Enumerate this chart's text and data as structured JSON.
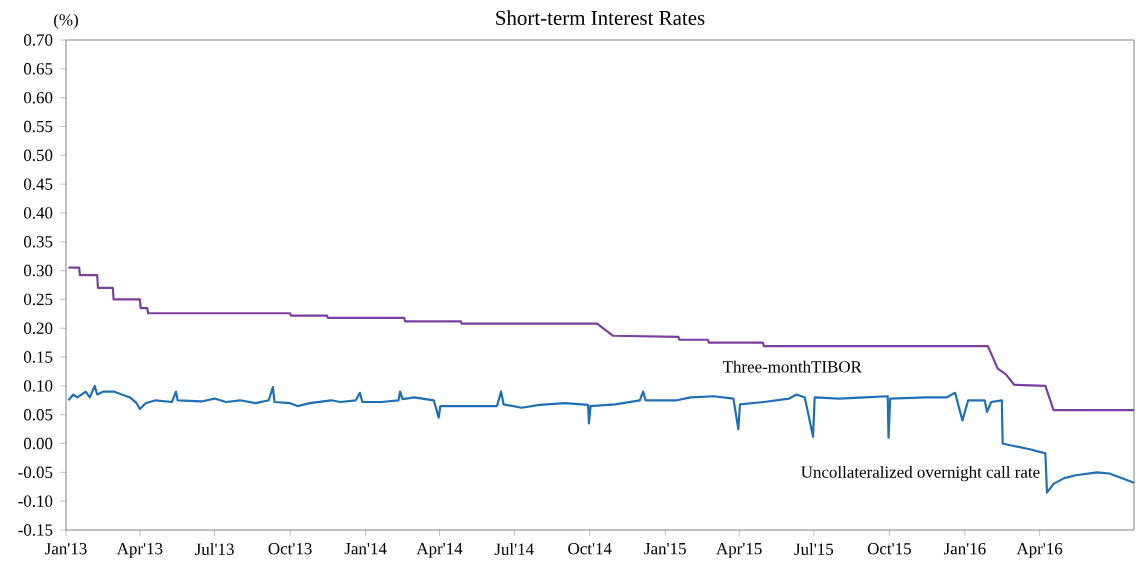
{
  "chart_data": {
    "type": "line",
    "title": "Short-term Interest Rates",
    "ylabel": "(%)",
    "xlim": [
      "2013-01-01",
      "2016-07-25"
    ],
    "xticks": [
      {
        "value": "2013-01-01",
        "label": "Jan'13"
      },
      {
        "value": "2013-04-01",
        "label": "Apr'13"
      },
      {
        "value": "2013-07-01",
        "label": "Jul'13"
      },
      {
        "value": "2013-10-01",
        "label": "Oct'13"
      },
      {
        "value": "2014-01-01",
        "label": "Jan'14"
      },
      {
        "value": "2014-04-01",
        "label": "Apr'14"
      },
      {
        "value": "2014-07-01",
        "label": "Jul'14"
      },
      {
        "value": "2014-10-01",
        "label": "Oct'14"
      },
      {
        "value": "2015-01-01",
        "label": "Jan'15"
      },
      {
        "value": "2015-04-01",
        "label": "Apr'15"
      },
      {
        "value": "2015-07-01",
        "label": "Jul'15"
      },
      {
        "value": "2015-10-01",
        "label": "Oct'15"
      },
      {
        "value": "2016-01-01",
        "label": "Jan'16"
      },
      {
        "value": "2016-04-01",
        "label": "Apr'16"
      }
    ],
    "ylim": [
      -0.15,
      0.7
    ],
    "yticks": [
      {
        "value": -0.15,
        "label": "-0.15"
      },
      {
        "value": -0.1,
        "label": "-0.10"
      },
      {
        "value": -0.05,
        "label": "-0.05"
      },
      {
        "value": 0,
        "label": "0.00"
      },
      {
        "value": 0.05,
        "label": "0.05"
      },
      {
        "value": 0.1,
        "label": "0.10"
      },
      {
        "value": 0.15,
        "label": "0.15"
      },
      {
        "value": 0.2,
        "label": "0.20"
      },
      {
        "value": 0.25,
        "label": "0.25"
      },
      {
        "value": 0.3,
        "label": "0.30"
      },
      {
        "value": 0.35,
        "label": "0.35"
      },
      {
        "value": 0.4,
        "label": "0.40"
      },
      {
        "value": 0.45,
        "label": "0.45"
      },
      {
        "value": 0.5,
        "label": "0.50"
      },
      {
        "value": 0.55,
        "label": "0.55"
      },
      {
        "value": 0.6,
        "label": "0.60"
      },
      {
        "value": 0.65,
        "label": "0.65"
      },
      {
        "value": 0.7,
        "label": "0.70"
      }
    ],
    "series": [
      {
        "name": "Three-monthTIBOR",
        "color": "#7b3f9e",
        "x": [
          "2013-01-04",
          "2013-01-17",
          "2013-01-18",
          "2013-02-08",
          "2013-02-09",
          "2013-02-27",
          "2013-02-28",
          "2013-04-01",
          "2013-04-02",
          "2013-04-10",
          "2013-04-11",
          "2013-10-01",
          "2013-10-02",
          "2013-11-15",
          "2013-11-16",
          "2014-02-17",
          "2014-02-18",
          "2014-04-27",
          "2014-04-28",
          "2014-10-10",
          "2014-10-29",
          "2015-01-17",
          "2015-01-18",
          "2015-02-22",
          "2015-02-23",
          "2015-04-30",
          "2015-05-01",
          "2016-01-29",
          "2016-02-10",
          "2016-02-20",
          "2016-03-01",
          "2016-04-08",
          "2016-04-18",
          "2016-07-25"
        ],
        "values": [
          0.305,
          0.305,
          0.292,
          0.292,
          0.27,
          0.27,
          0.25,
          0.25,
          0.235,
          0.235,
          0.226,
          0.226,
          0.222,
          0.222,
          0.218,
          0.218,
          0.212,
          0.212,
          0.208,
          0.208,
          0.187,
          0.185,
          0.18,
          0.18,
          0.175,
          0.175,
          0.169,
          0.169,
          0.13,
          0.12,
          0.102,
          0.1,
          0.058,
          0.058
        ]
      },
      {
        "name": "Uncollateralized overnight call rate",
        "color": "#1f6fb5",
        "x": [
          "2013-01-04",
          "2013-01-10",
          "2013-01-15",
          "2013-01-25",
          "2013-01-30",
          "2013-02-05",
          "2013-02-08",
          "2013-02-15",
          "2013-03-01",
          "2013-03-10",
          "2013-03-20",
          "2013-03-28",
          "2013-04-01",
          "2013-04-08",
          "2013-04-20",
          "2013-05-10",
          "2013-05-15",
          "2013-05-17",
          "2013-06-15",
          "2013-07-01",
          "2013-07-15",
          "2013-08-01",
          "2013-08-20",
          "2013-09-05",
          "2013-09-10",
          "2013-09-12",
          "2013-10-01",
          "2013-10-10",
          "2013-10-25",
          "2013-11-20",
          "2013-12-01",
          "2013-12-20",
          "2013-12-25",
          "2013-12-28",
          "2014-01-20",
          "2014-02-10",
          "2014-02-12",
          "2014-02-15",
          "2014-03-01",
          "2014-03-25",
          "2014-03-31",
          "2014-04-02",
          "2014-06-10",
          "2014-06-15",
          "2014-06-18",
          "2014-07-10",
          "2014-08-01",
          "2014-09-01",
          "2014-09-29",
          "2014-09-30",
          "2014-10-02",
          "2014-11-01",
          "2014-12-01",
          "2014-12-05",
          "2014-12-08",
          "2015-01-15",
          "2015-02-01",
          "2015-03-01",
          "2015-03-25",
          "2015-03-31",
          "2015-04-02",
          "2015-05-01",
          "2015-06-01",
          "2015-06-10",
          "2015-06-20",
          "2015-06-30",
          "2015-07-02",
          "2015-08-01",
          "2015-09-01",
          "2015-09-29",
          "2015-09-30",
          "2015-10-02",
          "2015-11-15",
          "2015-12-10",
          "2015-12-20",
          "2015-12-29",
          "2016-01-05",
          "2016-01-25",
          "2016-01-28",
          "2016-02-02",
          "2016-02-15",
          "2016-02-16",
          "2016-02-25",
          "2016-03-20",
          "2016-04-08",
          "2016-04-10",
          "2016-04-18",
          "2016-05-01",
          "2016-05-15",
          "2016-06-10",
          "2016-06-25",
          "2016-07-10",
          "2016-07-25"
        ],
        "values": [
          0.075,
          0.085,
          0.08,
          0.09,
          0.08,
          0.1,
          0.085,
          0.09,
          0.09,
          0.085,
          0.08,
          0.07,
          0.06,
          0.07,
          0.075,
          0.072,
          0.09,
          0.075,
          0.073,
          0.078,
          0.072,
          0.075,
          0.07,
          0.075,
          0.098,
          0.072,
          0.07,
          0.065,
          0.07,
          0.075,
          0.072,
          0.075,
          0.088,
          0.072,
          0.072,
          0.075,
          0.09,
          0.077,
          0.08,
          0.075,
          0.045,
          0.065,
          0.065,
          0.09,
          0.068,
          0.062,
          0.067,
          0.07,
          0.067,
          0.035,
          0.065,
          0.068,
          0.075,
          0.09,
          0.075,
          0.075,
          0.08,
          0.082,
          0.078,
          0.025,
          0.068,
          0.072,
          0.078,
          0.085,
          0.08,
          0.012,
          0.08,
          0.078,
          0.08,
          0.082,
          0.01,
          0.078,
          0.08,
          0.08,
          0.088,
          0.04,
          0.075,
          0.075,
          0.055,
          0.072,
          0.075,
          0.0,
          -0.003,
          -0.01,
          -0.017,
          -0.085,
          -0.07,
          -0.06,
          -0.055,
          -0.05,
          -0.052,
          -0.06,
          -0.068
        ]
      }
    ]
  }
}
